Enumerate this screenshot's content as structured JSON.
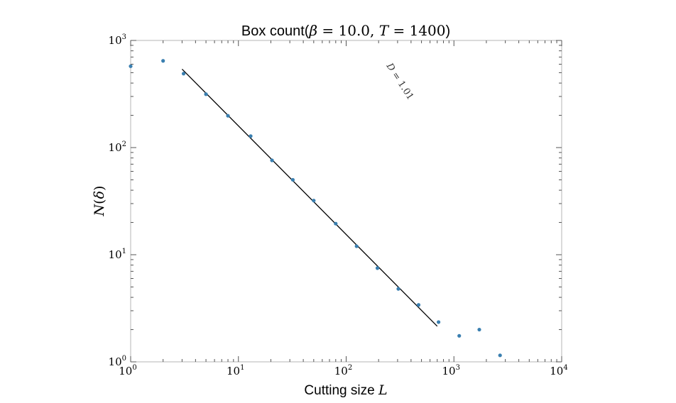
{
  "chart_data": {
    "type": "scatter",
    "title": {
      "prefix": "Box count(",
      "beta_symbol": "β",
      "beta_eq": " = 10.0, ",
      "t_symbol": "T",
      "t_eq": " = 1400",
      "suffix": ")"
    },
    "xlabel": {
      "text": "Cutting size ",
      "symbol": "L"
    },
    "ylabel": {
      "symbol_n": "N",
      "symbol_d": "δ"
    },
    "x_scale": "log",
    "y_scale": "log",
    "xlim": [
      1,
      10000
    ],
    "ylim": [
      1,
      1000
    ],
    "x_ticks": [
      {
        "value": 1,
        "base": "10",
        "exp": "0"
      },
      {
        "value": 10,
        "base": "10",
        "exp": "1"
      },
      {
        "value": 100,
        "base": "10",
        "exp": "2"
      },
      {
        "value": 1000,
        "base": "10",
        "exp": "3"
      },
      {
        "value": 10000,
        "base": "10",
        "exp": "4"
      }
    ],
    "y_ticks": [
      {
        "value": 1,
        "base": "10",
        "exp": "0"
      },
      {
        "value": 10,
        "base": "10",
        "exp": "1"
      },
      {
        "value": 100,
        "base": "10",
        "exp": "2"
      },
      {
        "value": 1000,
        "base": "10",
        "exp": "3"
      }
    ],
    "series": [
      {
        "marker_color": "#3a7fb0",
        "points": [
          {
            "x": 1,
            "y": 575
          },
          {
            "x": 2,
            "y": 645
          },
          {
            "x": 3.1,
            "y": 490
          },
          {
            "x": 5,
            "y": 315
          },
          {
            "x": 8,
            "y": 198
          },
          {
            "x": 13,
            "y": 128
          },
          {
            "x": 20.5,
            "y": 76
          },
          {
            "x": 32,
            "y": 50
          },
          {
            "x": 50,
            "y": 32
          },
          {
            "x": 80,
            "y": 19.5
          },
          {
            "x": 125,
            "y": 12
          },
          {
            "x": 195,
            "y": 7.5
          },
          {
            "x": 305,
            "y": 4.8
          },
          {
            "x": 470,
            "y": 3.4
          },
          {
            "x": 720,
            "y": 2.35
          },
          {
            "x": 1120,
            "y": 1.75
          },
          {
            "x": 1720,
            "y": 2.0
          },
          {
            "x": 2680,
            "y": 1.15
          }
        ]
      }
    ],
    "fit_line": {
      "color": "#000000",
      "x": [
        3,
        700
      ],
      "y": [
        540,
        2.15
      ]
    },
    "annotation": {
      "symbol": "D",
      "eq": " = 1.01",
      "x": 300,
      "y": 400,
      "rotation_deg": 57
    },
    "grid": false,
    "legend": "none"
  }
}
